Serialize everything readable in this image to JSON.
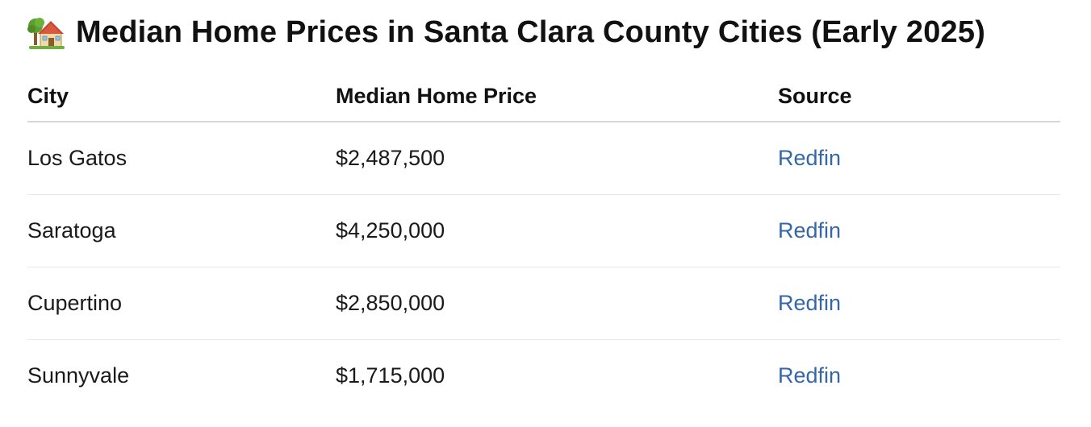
{
  "title": "Median Home Prices in Santa Clara County Cities (Early 2025)",
  "title_icon": "house-with-garden-icon",
  "table": {
    "headers": {
      "city": "City",
      "price": "Median Home Price",
      "source": "Source"
    },
    "rows": [
      {
        "city": "Los Gatos",
        "price": "$2,487,500",
        "source": "Redfin"
      },
      {
        "city": "Saratoga",
        "price": "$4,250,000",
        "source": "Redfin"
      },
      {
        "city": "Cupertino",
        "price": "$2,850,000",
        "source": "Redfin"
      },
      {
        "city": "Sunnyvale",
        "price": "$1,715,000",
        "source": "Redfin"
      }
    ]
  },
  "colors": {
    "link": "#3567a8",
    "text": "#1a1a1a",
    "header_rule": "#d6d6d6",
    "row_rule": "#e8e8e8"
  }
}
